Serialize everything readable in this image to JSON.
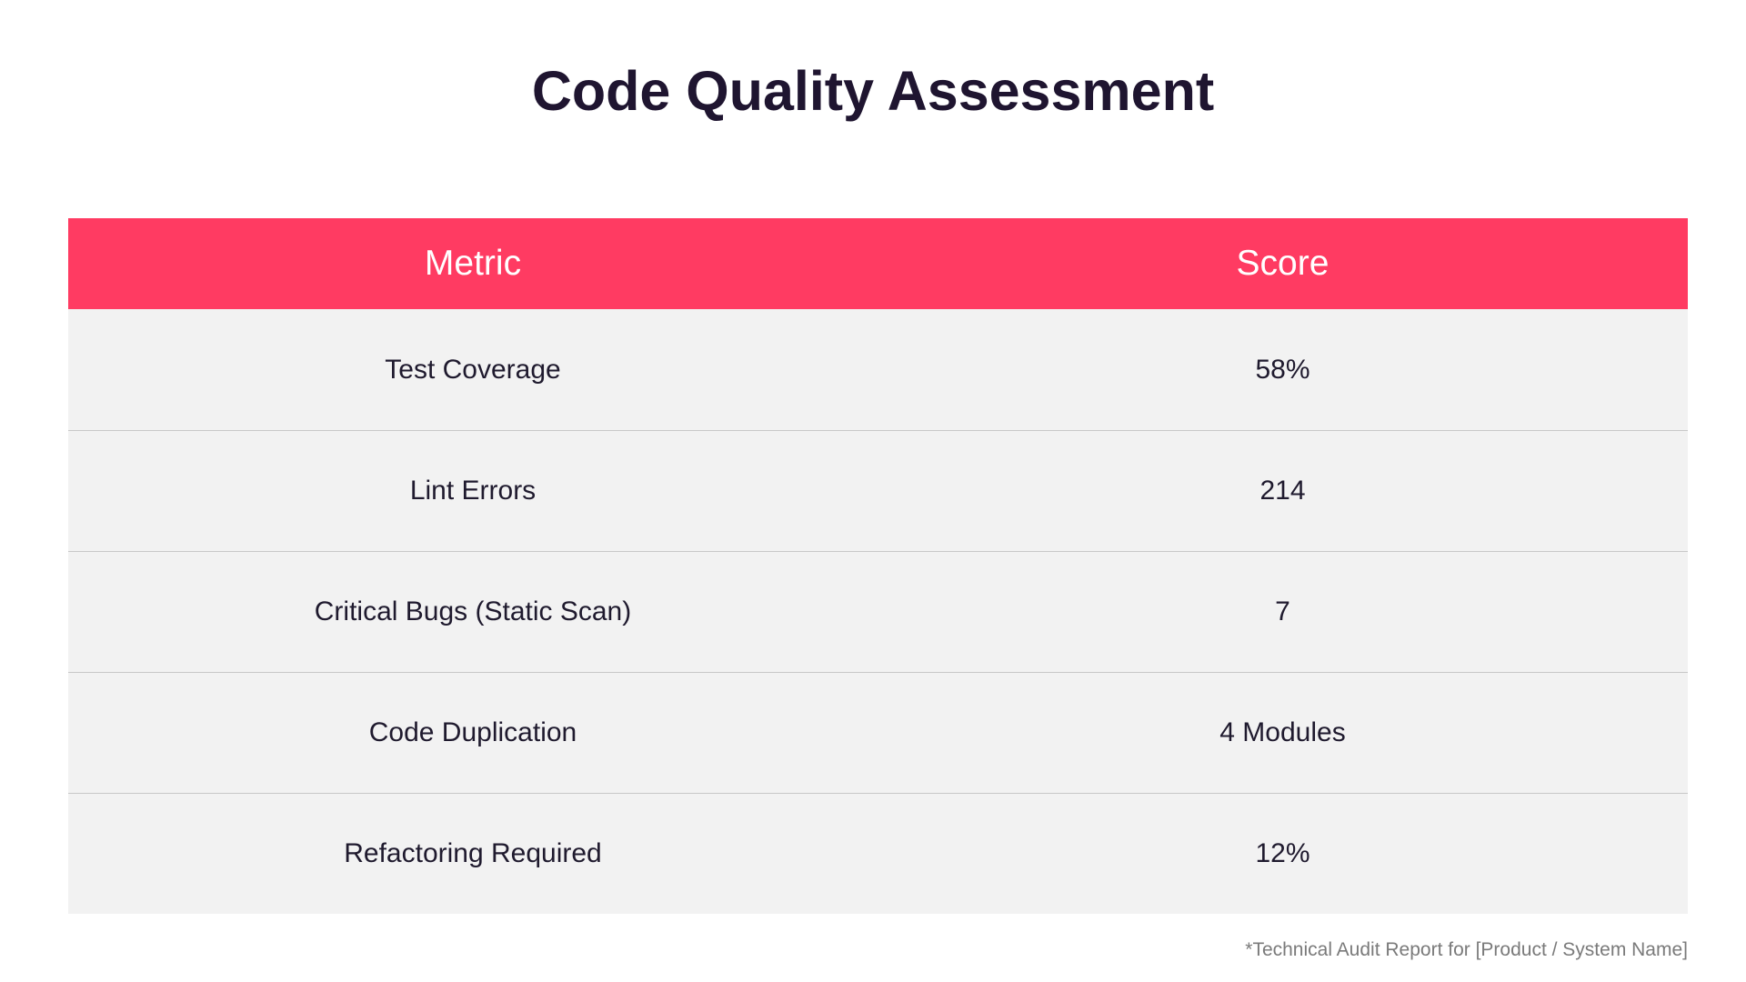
{
  "title": "Code Quality Assessment",
  "table": {
    "headers": {
      "metric": "Metric",
      "score": "Score"
    },
    "rows": [
      {
        "metric": "Test Coverage",
        "score": "58%"
      },
      {
        "metric": "Lint Errors",
        "score": "214"
      },
      {
        "metric": "Critical Bugs (Static Scan)",
        "score": "7"
      },
      {
        "metric": "Code Duplication",
        "score": "4 Modules"
      },
      {
        "metric": "Refactoring Required",
        "score": "12%"
      }
    ]
  },
  "footnote": "*Technical Audit Report for [Product / System Name]",
  "colors": {
    "header_bg": "#ff3b62",
    "row_bg": "#f2f2f2",
    "title_text": "#1f1530"
  }
}
